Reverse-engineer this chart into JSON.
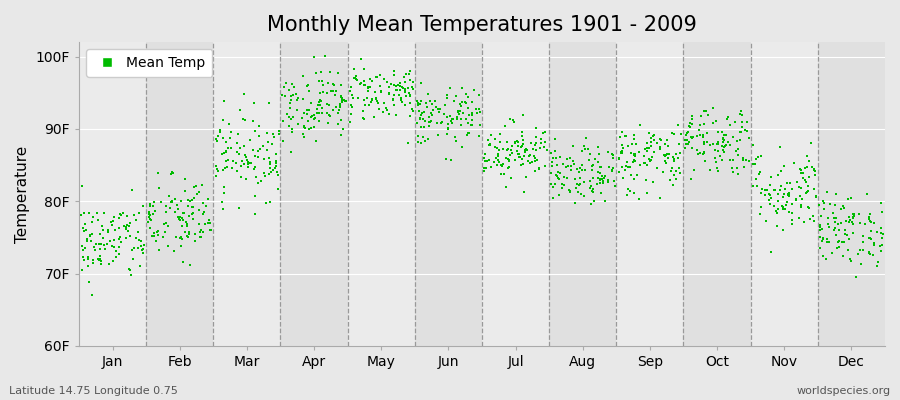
{
  "title": "Monthly Mean Temperatures 1901 - 2009",
  "ylabel": "Temperature",
  "xlabel_labels": [
    "Jan",
    "Feb",
    "Mar",
    "Apr",
    "May",
    "Jun",
    "Jul",
    "Aug",
    "Sep",
    "Oct",
    "Nov",
    "Dec"
  ],
  "ytick_labels": [
    "60F",
    "70F",
    "80F",
    "90F",
    "100F"
  ],
  "ytick_values": [
    60,
    70,
    80,
    90,
    100
  ],
  "ylim": [
    60,
    102
  ],
  "xlim": [
    0,
    12
  ],
  "dot_color": "#00BB00",
  "bg_color": "#E8E8E8",
  "plot_bg_color_light": "#EBEBEB",
  "plot_bg_color_dark": "#E0E0E0",
  "vline_color": "#999999",
  "legend_label": "Mean Temp",
  "footer_left": "Latitude 14.75 Longitude 0.75",
  "footer_right": "worldspecies.org",
  "title_fontsize": 15,
  "axis_fontsize": 11,
  "tick_fontsize": 10,
  "footer_fontsize": 8,
  "monthly_means": [
    74.5,
    77.5,
    86.5,
    93.5,
    95.0,
    91.5,
    87.0,
    83.5,
    86.0,
    88.5,
    81.5,
    76.0
  ],
  "monthly_stds": [
    2.8,
    3.0,
    3.0,
    2.5,
    2.0,
    2.0,
    2.0,
    2.0,
    2.5,
    2.5,
    3.0,
    2.5
  ],
  "n_years": 109,
  "seed": 42,
  "dot_size": 4
}
